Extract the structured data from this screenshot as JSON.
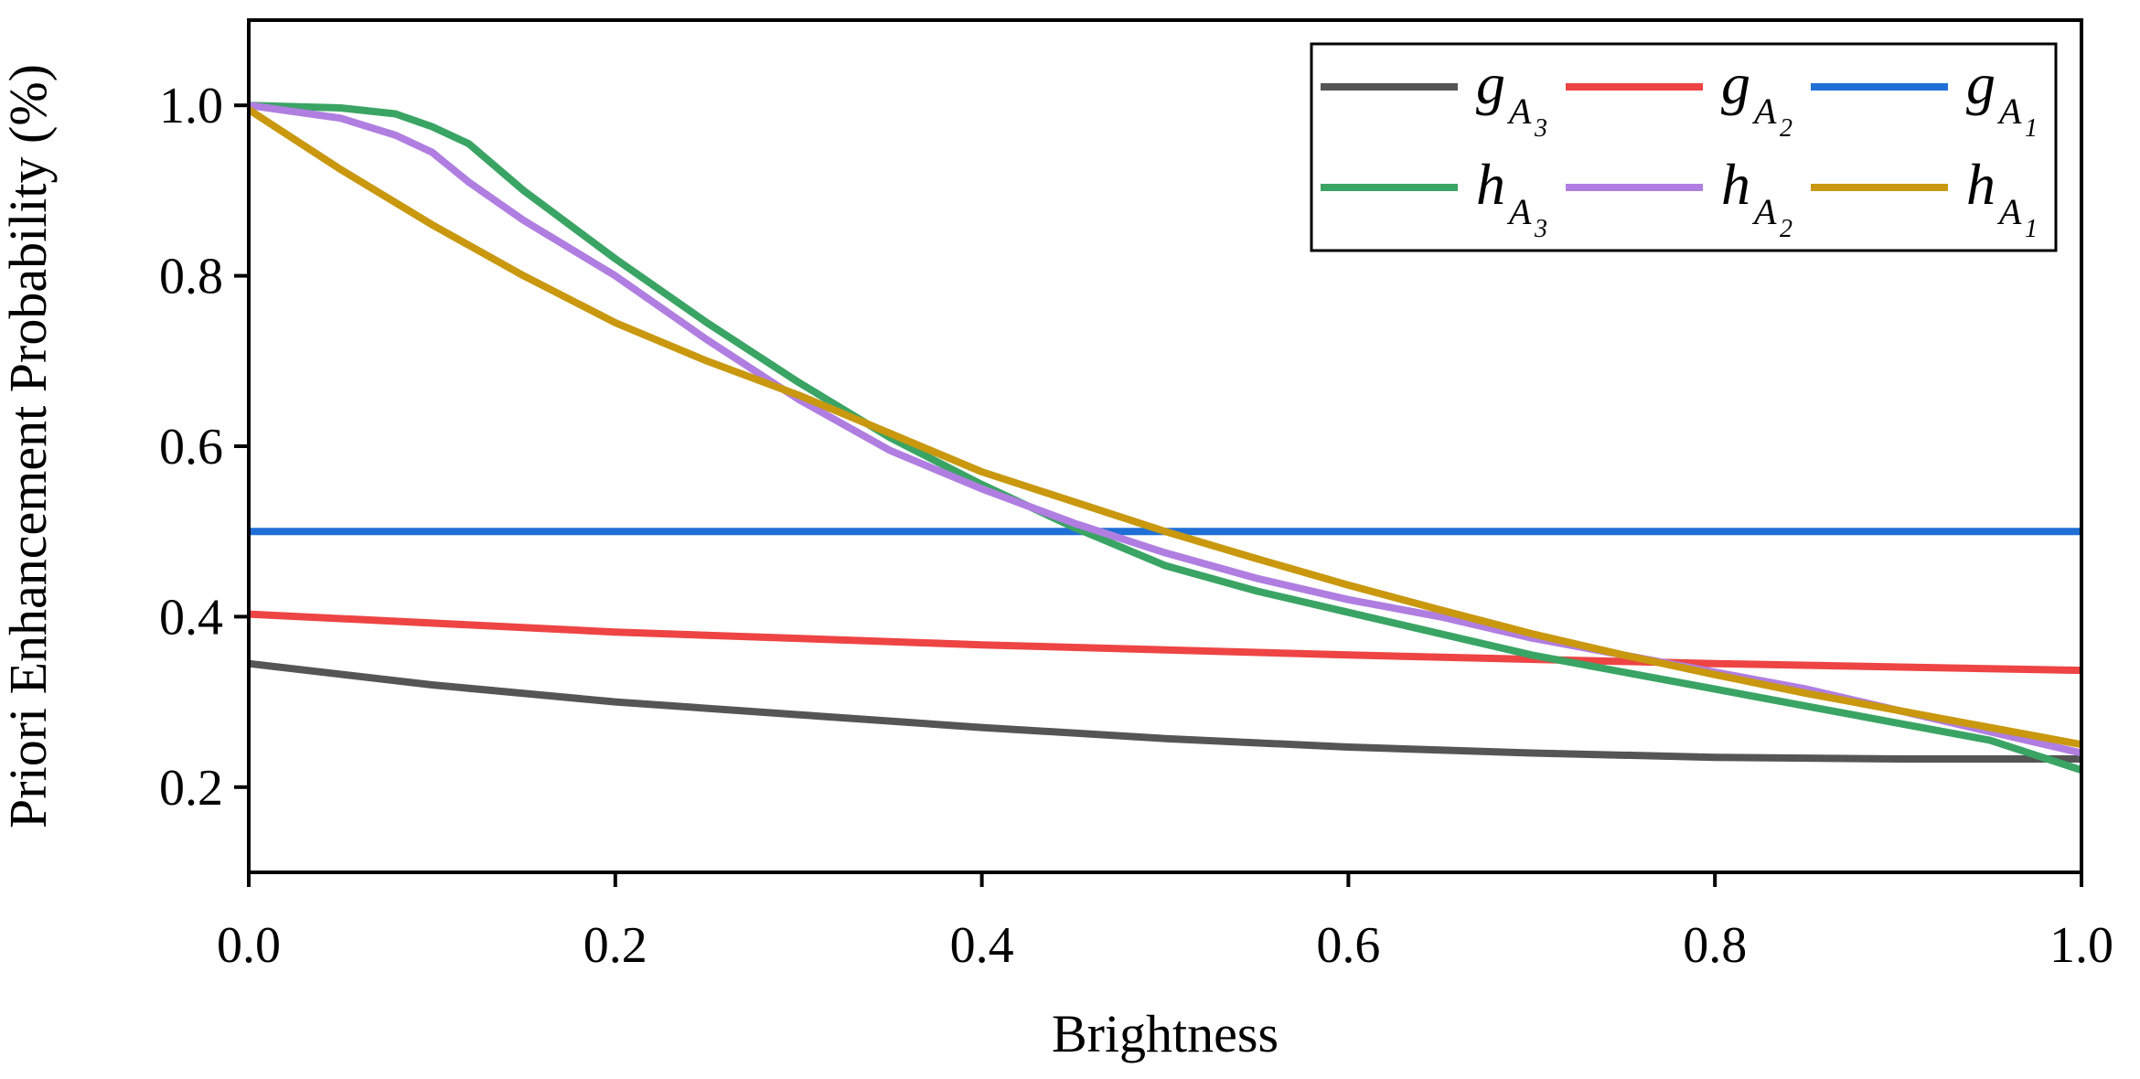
{
  "chart_data": {
    "type": "line",
    "title": "",
    "xlabel": "Brightness",
    "ylabel": "Priori Enhancement Probability (%)",
    "xlim": [
      0.0,
      1.0
    ],
    "ylim": [
      0.1,
      1.1
    ],
    "x_ticks": [
      "0.0",
      "0.2",
      "0.4",
      "0.6",
      "0.8",
      "1.0"
    ],
    "y_ticks": [
      "0.2",
      "0.4",
      "0.6",
      "0.8",
      "1.0"
    ],
    "x_tick_values": [
      0.0,
      0.2,
      0.4,
      0.6,
      0.8,
      1.0
    ],
    "y_tick_values": [
      0.2,
      0.4,
      0.6,
      0.8,
      1.0
    ],
    "grid": false,
    "legend_position": "top-right",
    "series": [
      {
        "id": "gA3",
        "base": "g",
        "sub": "A",
        "subsub": "3",
        "color": "#555555",
        "x": [
          0.0,
          0.1,
          0.2,
          0.3,
          0.4,
          0.5,
          0.6,
          0.7,
          0.8,
          0.9,
          1.0
        ],
        "y": [
          0.345,
          0.32,
          0.3,
          0.285,
          0.27,
          0.257,
          0.247,
          0.24,
          0.235,
          0.233,
          0.233
        ]
      },
      {
        "id": "gA2",
        "base": "g",
        "sub": "A",
        "subsub": "2",
        "color": "#ee4444",
        "x": [
          0.0,
          0.2,
          0.4,
          0.6,
          0.8,
          1.0
        ],
        "y": [
          0.403,
          0.382,
          0.367,
          0.355,
          0.345,
          0.337
        ]
      },
      {
        "id": "gA1",
        "base": "g",
        "sub": "A",
        "subsub": "1",
        "color": "#1f6fd6",
        "x": [
          0.0,
          1.0
        ],
        "y": [
          0.5,
          0.5
        ]
      },
      {
        "id": "hA3",
        "base": "h",
        "sub": "A",
        "subsub": "3",
        "color": "#3aa464",
        "x": [
          0.0,
          0.05,
          0.08,
          0.1,
          0.12,
          0.15,
          0.2,
          0.25,
          0.3,
          0.35,
          0.4,
          0.45,
          0.5,
          0.55,
          0.6,
          0.65,
          0.7,
          0.75,
          0.8,
          0.85,
          0.9,
          0.95,
          1.0
        ],
        "y": [
          1.0,
          0.997,
          0.99,
          0.975,
          0.955,
          0.9,
          0.82,
          0.745,
          0.675,
          0.61,
          0.555,
          0.505,
          0.46,
          0.43,
          0.405,
          0.38,
          0.355,
          0.335,
          0.315,
          0.295,
          0.275,
          0.255,
          0.22
        ]
      },
      {
        "id": "hA2",
        "base": "h",
        "sub": "A",
        "subsub": "2",
        "color": "#b07ee0",
        "x": [
          0.0,
          0.05,
          0.08,
          0.1,
          0.12,
          0.15,
          0.2,
          0.25,
          0.3,
          0.35,
          0.4,
          0.45,
          0.5,
          0.55,
          0.6,
          0.65,
          0.7,
          0.75,
          0.8,
          0.85,
          0.9,
          0.95,
          1.0
        ],
        "y": [
          1.0,
          0.985,
          0.965,
          0.945,
          0.91,
          0.865,
          0.8,
          0.725,
          0.655,
          0.595,
          0.55,
          0.51,
          0.475,
          0.445,
          0.42,
          0.4,
          0.375,
          0.355,
          0.335,
          0.315,
          0.29,
          0.265,
          0.24
        ]
      },
      {
        "id": "hA1",
        "base": "h",
        "sub": "A",
        "subsub": "1",
        "color": "#c9980e",
        "x": [
          0.0,
          0.05,
          0.1,
          0.15,
          0.2,
          0.25,
          0.3,
          0.35,
          0.4,
          0.45,
          0.5,
          0.55,
          0.6,
          0.65,
          0.7,
          0.75,
          0.8,
          0.85,
          0.9,
          0.95,
          1.0
        ],
        "y": [
          0.995,
          0.925,
          0.86,
          0.8,
          0.745,
          0.7,
          0.66,
          0.615,
          0.57,
          0.535,
          0.5,
          0.468,
          0.437,
          0.408,
          0.38,
          0.355,
          0.332,
          0.31,
          0.29,
          0.27,
          0.25
        ]
      }
    ]
  }
}
